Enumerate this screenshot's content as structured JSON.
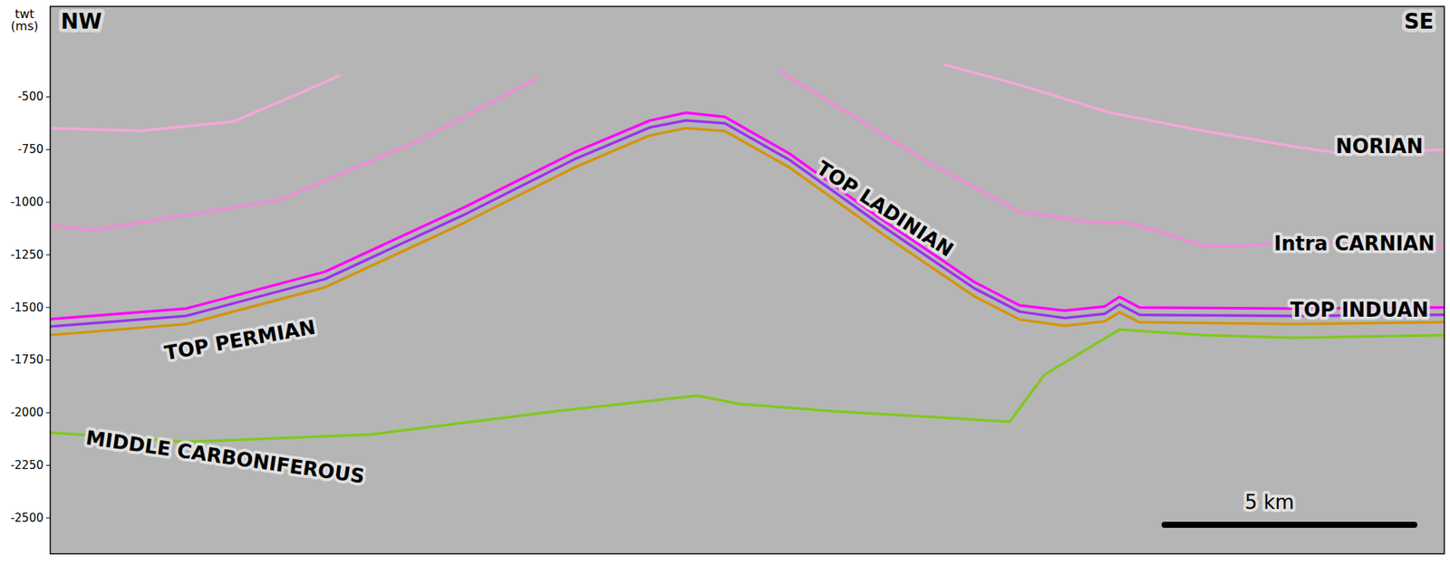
{
  "chart_data": {
    "type": "line",
    "y_label": "twt (ms)",
    "corner_labels": [
      "NW",
      "SE"
    ],
    "xlim": [
      0,
      27.9
    ],
    "ylim": [
      -2670,
      -70
    ],
    "yticks": [
      -500,
      -750,
      -1000,
      -1250,
      -1500,
      -1750,
      -2000,
      -2250,
      -2500
    ],
    "tick_labels": "y",
    "scale_bar": {
      "length": 5,
      "label": "5 km"
    },
    "series": [
      {
        "name": "NORIAN",
        "color": "#f5a6da",
        "x": [
          0,
          1.8,
          3.65,
          4.95,
          5.78,
          12.0,
          17.9,
          19.4,
          21.2,
          23.1,
          24.9,
          25.9,
          27.9
        ],
        "values": [
          -648,
          -661,
          -618,
          -487,
          -400,
          null,
          -347,
          -443,
          -574,
          -662,
          -736,
          -771,
          -750
        ]
      },
      {
        "name": "Intra CARNIAN",
        "color": "#f28ad8",
        "x": [
          0,
          0.87,
          4.6,
          7.4,
          9.75,
          12.0,
          14.6,
          17.6,
          19.4,
          20.9,
          21.6,
          23.1,
          23.7,
          24.6,
          27.9
        ],
        "values": [
          -1111,
          -1133,
          -989,
          -705,
          -413,
          null,
          -378,
          -814,
          -1046,
          -1098,
          -1098,
          -1207,
          -1210,
          -1194,
          -1205
        ]
      },
      {
        "name": "TOP LADINIAN",
        "color": "#ff00ff",
        "x": [
          0,
          2.72,
          5.5,
          8.28,
          10.5,
          12.0,
          12.72,
          13.5,
          14.8,
          16.6,
          18.5,
          19.4,
          20.3,
          21.1,
          21.4,
          21.8,
          24.9,
          27.9
        ],
        "values": [
          -1555,
          -1505,
          -1330,
          -1025,
          -762,
          -612,
          -575,
          -595,
          -770,
          -1075,
          -1380,
          -1490,
          -1515,
          -1495,
          -1450,
          -1500,
          -1505,
          -1500
        ]
      },
      {
        "name": "TOP INDUAN",
        "color": "#9933ee",
        "x": [
          0,
          2.72,
          5.5,
          8.28,
          10.5,
          12.0,
          12.72,
          13.5,
          14.8,
          16.6,
          18.5,
          19.4,
          20.3,
          21.1,
          21.4,
          21.8,
          24.9,
          27.9
        ],
        "values": [
          -1590,
          -1540,
          -1365,
          -1060,
          -795,
          -645,
          -612,
          -625,
          -800,
          -1105,
          -1410,
          -1520,
          -1550,
          -1530,
          -1485,
          -1535,
          -1540,
          -1535
        ]
      },
      {
        "name": "TOP PERMIAN",
        "color": "#d4940c",
        "x": [
          0,
          2.72,
          5.5,
          8.28,
          10.5,
          12.0,
          12.72,
          13.5,
          14.8,
          16.6,
          18.5,
          19.4,
          20.3,
          21.1,
          21.4,
          21.8,
          24.9,
          27.9
        ],
        "values": [
          -1631,
          -1579,
          -1404,
          -1098,
          -834,
          -683,
          -648,
          -662,
          -836,
          -1142,
          -1448,
          -1557,
          -1587,
          -1566,
          -1522,
          -1570,
          -1579,
          -1570
        ]
      },
      {
        "name": "MIDDLE CARBONIFEROUS",
        "color": "#80c820",
        "x": [
          0,
          2.72,
          6.4,
          10.1,
          12.94,
          13.8,
          15.7,
          19.2,
          19.9,
          21.4,
          23.1,
          24.9,
          27.9
        ],
        "values": [
          -2094,
          -2138,
          -2103,
          -1993,
          -1919,
          -1958,
          -1993,
          -2042,
          -1819,
          -1605,
          -1631,
          -1644,
          -1631
        ]
      }
    ]
  }
}
